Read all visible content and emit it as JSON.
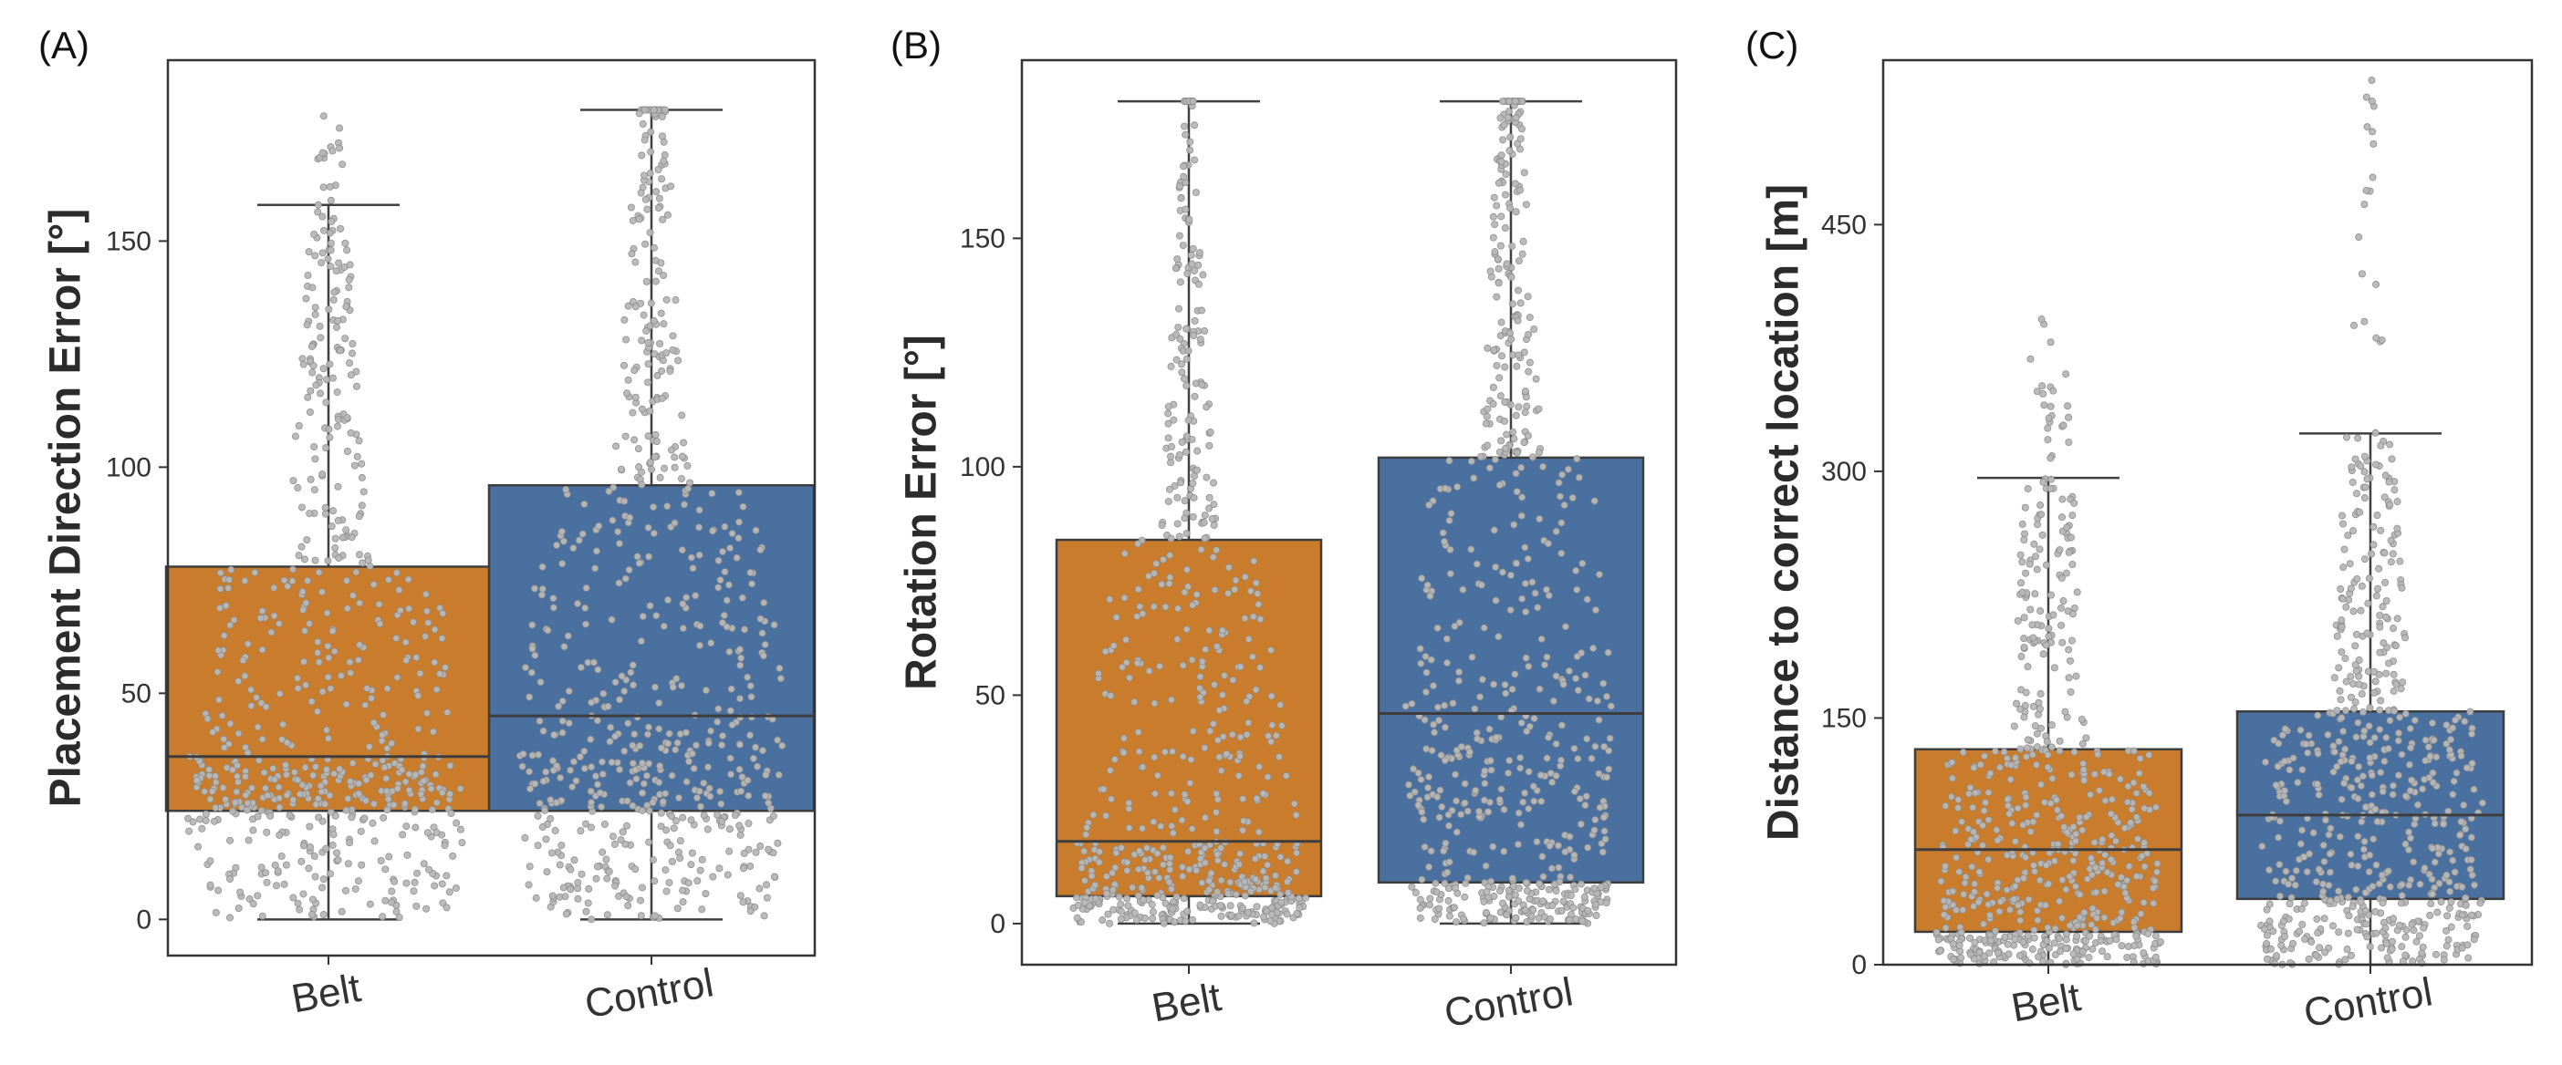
{
  "chart_data": [
    {
      "type": "box",
      "panel": "(A)",
      "categories": [
        "Belt",
        "Control"
      ],
      "xlabel": "",
      "ylabel": "Placement Direction Error [°]",
      "ylim": [
        -8,
        190
      ],
      "yticks": [
        0,
        50,
        100,
        150
      ],
      "ytick_labels": [
        "0",
        "50",
        "100",
        "150"
      ],
      "overlay": "swarm (individual trials, grey dots)",
      "series": [
        {
          "name": "Belt",
          "color": "#c97d2c",
          "min": 0,
          "q1": 24,
          "median": 36,
          "q3": 78,
          "whisker_high": 158,
          "max": 180
        },
        {
          "name": "Control",
          "color": "#4a70a0",
          "min": 0,
          "q1": 24,
          "median": 45,
          "q3": 96,
          "whisker_high": 179,
          "max": 179
        }
      ]
    },
    {
      "type": "box",
      "panel": "(B)",
      "categories": [
        "Belt",
        "Control"
      ],
      "xlabel": "",
      "ylabel": "Rotation Error [°]",
      "ylim": [
        -9,
        189
      ],
      "yticks": [
        0,
        50,
        100,
        150
      ],
      "ytick_labels": [
        "0",
        "50",
        "100",
        "150"
      ],
      "overlay": "swarm (individual trials, grey dots)",
      "series": [
        {
          "name": "Belt",
          "color": "#c97d2c",
          "min": 0,
          "q1": 6,
          "median": 18,
          "q3": 84,
          "whisker_high": 180,
          "max": 180
        },
        {
          "name": "Control",
          "color": "#4a70a0",
          "min": 0,
          "q1": 9,
          "median": 46,
          "q3": 102,
          "whisker_high": 180,
          "max": 180
        }
      ]
    },
    {
      "type": "box",
      "panel": "(C)",
      "categories": [
        "Belt",
        "Control"
      ],
      "xlabel": "",
      "ylabel": "Distance to correct location [m]",
      "ylim": [
        0,
        550
      ],
      "yticks": [
        0,
        150,
        300,
        450
      ],
      "ytick_labels": [
        "0",
        "150",
        "300",
        "450"
      ],
      "overlay": "swarm (individual trials, grey dots)",
      "series": [
        {
          "name": "Belt",
          "color": "#c97d2c",
          "min": 0,
          "q1": 20,
          "median": 70,
          "q3": 131,
          "whisker_high": 296,
          "max": 405
        },
        {
          "name": "Control",
          "color": "#4a70a0",
          "min": 0,
          "q1": 40,
          "median": 91,
          "q3": 154,
          "whisker_high": 323,
          "max": 545
        }
      ]
    }
  ]
}
